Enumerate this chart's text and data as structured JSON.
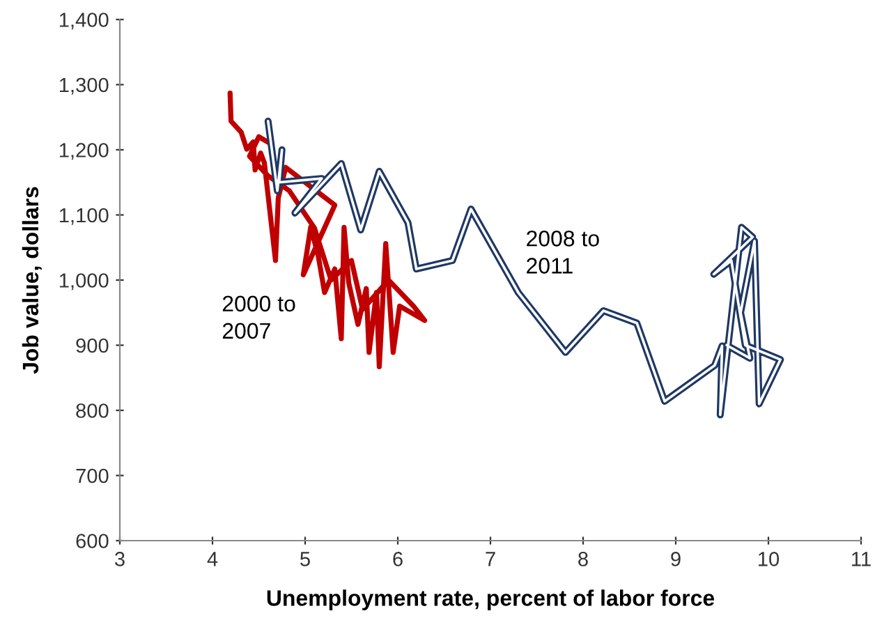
{
  "chart_data": {
    "type": "line",
    "xlabel": "Unemployment rate, percent of labor force",
    "ylabel": "Job value, dollars",
    "xlim": [
      3,
      11
    ],
    "xticks": [
      3,
      4,
      5,
      6,
      7,
      8,
      9,
      10,
      11
    ],
    "ylim": [
      600,
      1400
    ],
    "yticks": [
      600,
      700,
      800,
      900,
      {
        "value": 1000,
        "label": "1,000"
      },
      {
        "value": 1100,
        "label": "1,100"
      },
      {
        "value": 1200,
        "label": "1,200"
      },
      {
        "value": 1300,
        "label": "1,300"
      },
      {
        "value": 1400,
        "label": "1,400"
      }
    ],
    "grid": false,
    "legend": false,
    "marker": "none",
    "line_style": "solid",
    "series": [
      {
        "color": "#c00000",
        "x": [
          4.19,
          4.2,
          4.31,
          4.37,
          4.44,
          4.46,
          4.52,
          4.56,
          4.68,
          4.71,
          4.79,
          5.32,
          4.98,
          5.06,
          5.14,
          5.21,
          5.32,
          5.39,
          5.42,
          5.47,
          5.57,
          5.66,
          5.69,
          5.77,
          5.8,
          5.87,
          5.95,
          6.02,
          6.29,
          6.17,
          5.9,
          5.62,
          5.5,
          5.28,
          5.1,
          4.83,
          4.6,
          4.4,
          4.5,
          4.62
        ],
        "values": [
          1287,
          1244,
          1227,
          1201,
          1212,
          1169,
          1195,
          1180,
          1030,
          1126,
          1173,
          1115,
          1008,
          1081,
          1038,
          981,
          1017,
          910,
          1081,
          996,
          932,
          987,
          889,
          981,
          867,
          1056,
          889,
          960,
          938,
          960,
          1000,
          955,
          1030,
          1000,
          1080,
          1137,
          1160,
          1190,
          1220,
          1210
        ]
      },
      {
        "color": "#1f3864",
        "x": [
          4.6,
          4.7,
          4.75,
          4.72,
          5.18,
          4.89,
          5.39,
          5.6,
          5.8,
          6.11,
          6.2,
          6.59,
          6.79,
          7.3,
          7.81,
          8.22,
          8.58,
          8.88,
          9.42,
          9.5,
          9.48,
          9.71,
          9.83,
          9.41,
          9.6,
          9.75,
          10.13,
          9.9,
          9.85,
          9.7,
          9.8,
          9.55
        ],
        "values": [
          1244,
          1137,
          1200,
          1150,
          1156,
          1103,
          1179,
          1077,
          1167,
          1088,
          1017,
          1030,
          1109,
          981,
          889,
          953,
          934,
          814,
          869,
          899,
          793,
          1081,
          1066,
          1009,
          1030,
          900,
          878,
          810,
          1060,
          950,
          880,
          900
        ]
      }
    ],
    "annotations": [
      "2000 to\n2007",
      "2008 to\n2011"
    ]
  }
}
